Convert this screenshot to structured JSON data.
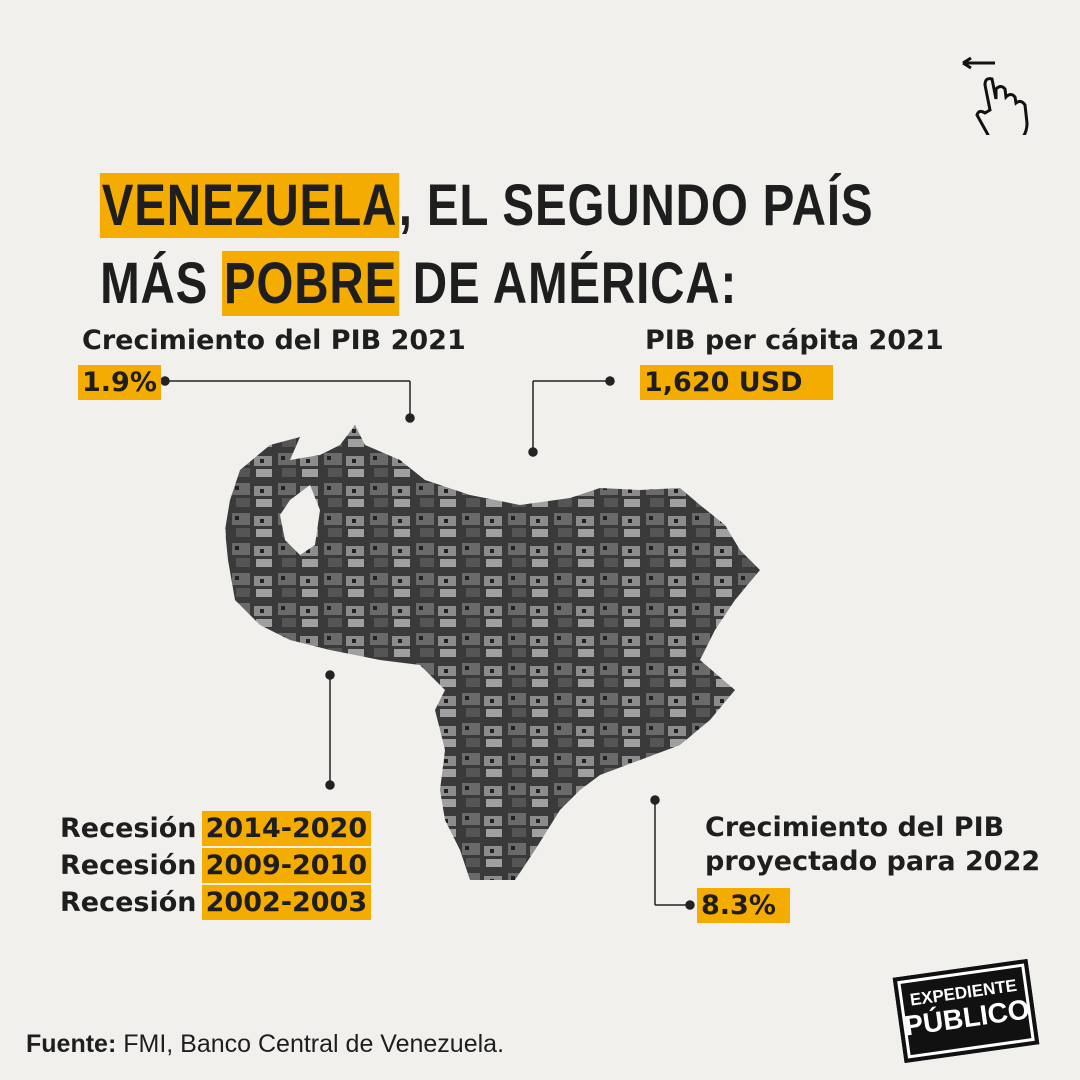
{
  "header": {
    "title_lines": [
      [
        {
          "text": "VENEZUELA",
          "highlight": true
        },
        {
          "text": ", EL SEGUNDO PAÍS",
          "highlight": false
        }
      ],
      [
        {
          "text": "MÁS ",
          "highlight": false
        },
        {
          "text": "POBRE",
          "highlight": true
        },
        {
          "text": " DE AMÉRICA:",
          "highlight": false
        }
      ]
    ]
  },
  "stats": {
    "gdp_growth_2021": {
      "label": "Crecimiento del PIB 2021",
      "value": "1.9%"
    },
    "gdp_per_capita_2021": {
      "label": "PIB per cápita 2021",
      "value": "1,620 USD"
    },
    "recessions": [
      {
        "label": "Recesión",
        "period": "2014-2020"
      },
      {
        "label": "Recesión",
        "period": "2009-2010"
      },
      {
        "label": "Recesión",
        "period": "2002-2003"
      }
    ],
    "gdp_projection_2022": {
      "label_lines": [
        "Crecimiento del PIB",
        "proyectado para 2022"
      ],
      "value": "8.3%"
    }
  },
  "footer": {
    "source_label": "Fuente:",
    "source_text": "FMI, Banco Central de Venezuela."
  },
  "logo": {
    "lines": [
      "EXPEDIENTE",
      "PÚBLICO"
    ]
  }
}
